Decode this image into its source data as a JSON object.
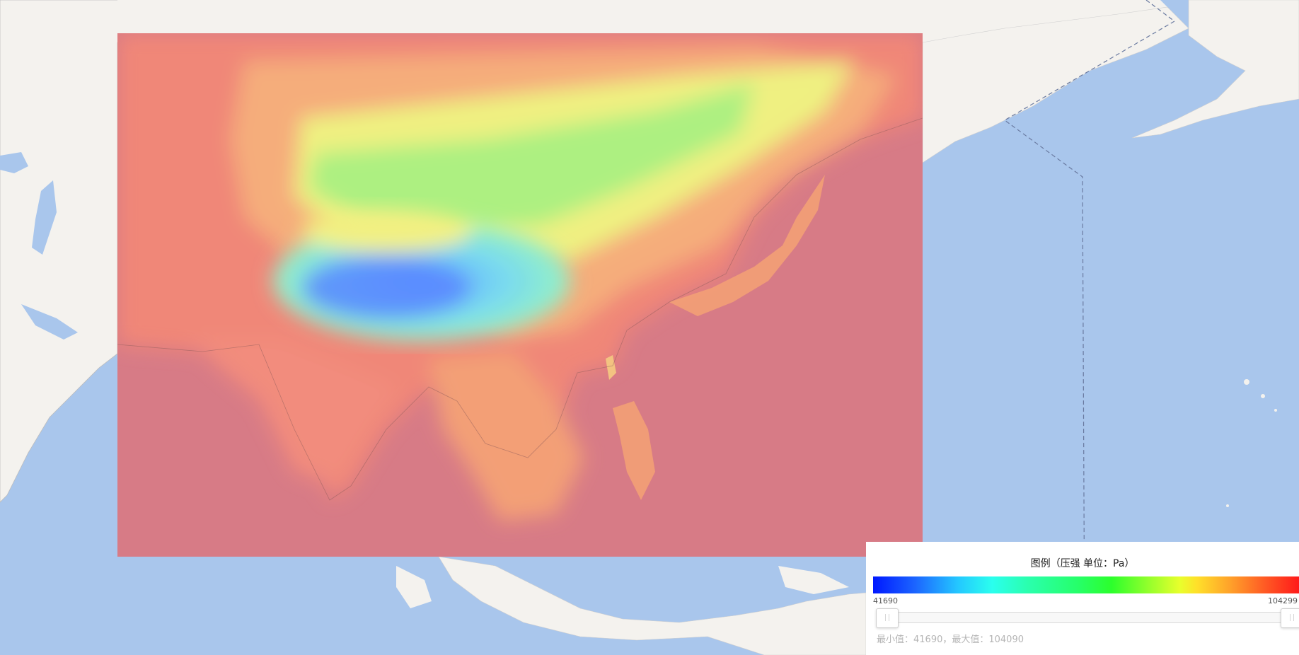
{
  "map": {
    "legend": {
      "title": "图例（压强 单位：Pa）",
      "unit": "Pa",
      "quantity": "压强",
      "range_min_label": "41690",
      "range_max_label": "104299",
      "slider": {
        "min": 41690,
        "max": 104299,
        "low_value": 41690,
        "high_value": 104090
      },
      "status_text": "最小值：41690，最大值：104090",
      "gradient_colors": [
        "#0018ff",
        "#24c8ff",
        "#2affee",
        "#2cff2c",
        "#e8ff2c",
        "#ffa02a",
        "#ff1a1a"
      ]
    },
    "colors": {
      "ocean": "#a9c6ec",
      "land": "#f4f2ee",
      "overlay_low": "#8ad7f0",
      "overlay_mid": "#f3f58a",
      "overlay_high": "#d5737f"
    }
  }
}
